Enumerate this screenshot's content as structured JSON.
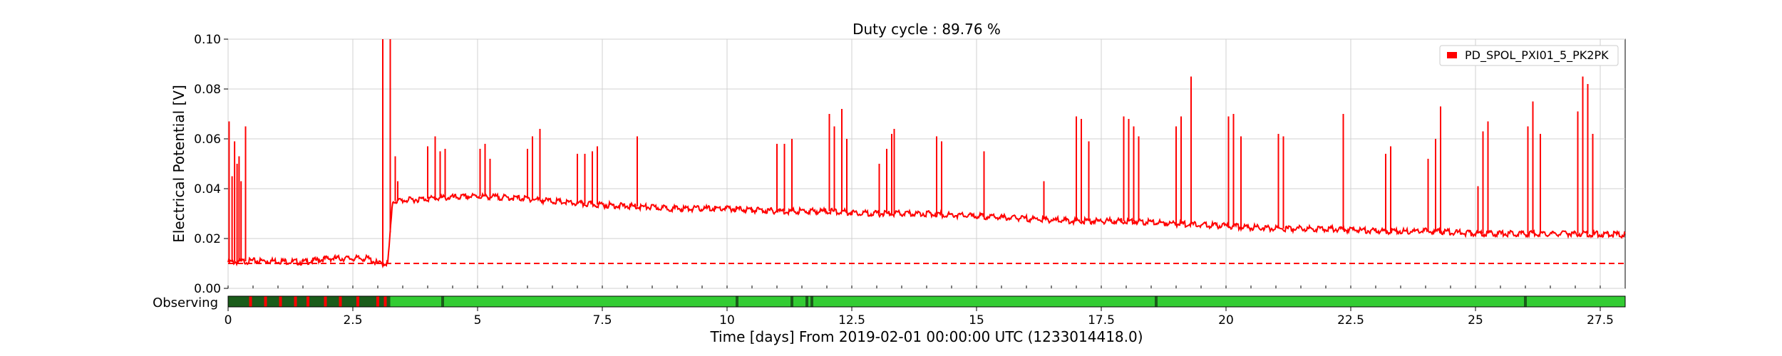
{
  "chart_data": {
    "type": "line",
    "title": "Duty cycle : 89.76 %",
    "xlabel": "Time [days] From 2019-02-01 00:00:00 UTC (1233014418.0)",
    "ylabel": "Electrical Potential [V]",
    "xlim": [
      0,
      28
    ],
    "ylim": [
      0,
      0.1
    ],
    "x_ticks": [
      0,
      2.5,
      5,
      7.5,
      10,
      12.5,
      15,
      17.5,
      20,
      22.5,
      25,
      27.5
    ],
    "x_tick_labels": [
      "0",
      "2.5",
      "5",
      "7.5",
      "10",
      "12.5",
      "15",
      "17.5",
      "20",
      "22.5",
      "25",
      "27.5"
    ],
    "y_ticks": [
      0,
      0.02,
      0.04,
      0.06,
      0.08,
      0.1
    ],
    "y_tick_labels": [
      "0.00",
      "0.02",
      "0.04",
      "0.06",
      "0.08",
      "0.10"
    ],
    "grid": true,
    "legend_position": "top-right",
    "colors": {
      "series": "#ff0000",
      "observing": "#33cc33",
      "dark_segment": "#1a5c1a",
      "not_observing": "#ff0000"
    },
    "series": [
      {
        "name": "PD_SPOL_PXI01_5_PK2PK",
        "baseline": {
          "x": [
            0,
            0.5,
            1.0,
            1.5,
            2.0,
            2.5,
            2.8,
            3.0,
            3.2,
            3.3,
            4.0,
            5.0,
            6.0,
            7.0,
            8.0,
            9.0,
            10.0,
            11.0,
            12.0,
            13.0,
            14.0,
            15.0,
            16.0,
            17.0,
            18.0,
            19.0,
            20.0,
            21.0,
            22.0,
            23.0,
            24.0,
            25.0,
            26.0,
            27.0,
            28.0
          ],
          "y": [
            0.0105,
            0.011,
            0.011,
            0.0105,
            0.012,
            0.012,
            0.012,
            0.01,
            0.01,
            0.035,
            0.036,
            0.037,
            0.036,
            0.034,
            0.033,
            0.032,
            0.032,
            0.031,
            0.031,
            0.03,
            0.03,
            0.029,
            0.028,
            0.027,
            0.027,
            0.026,
            0.025,
            0.024,
            0.024,
            0.023,
            0.023,
            0.022,
            0.022,
            0.022,
            0.0215
          ]
        },
        "spikes": [
          {
            "x": 0.02,
            "y": 0.067
          },
          {
            "x": 0.08,
            "y": 0.045
          },
          {
            "x": 0.13,
            "y": 0.059
          },
          {
            "x": 0.18,
            "y": 0.05
          },
          {
            "x": 0.22,
            "y": 0.053
          },
          {
            "x": 0.26,
            "y": 0.043
          },
          {
            "x": 0.35,
            "y": 0.065
          },
          {
            "x": 3.1,
            "y": 0.1
          },
          {
            "x": 3.25,
            "y": 0.1
          },
          {
            "x": 3.35,
            "y": 0.053
          },
          {
            "x": 3.4,
            "y": 0.043
          },
          {
            "x": 4.0,
            "y": 0.057
          },
          {
            "x": 4.15,
            "y": 0.061
          },
          {
            "x": 4.25,
            "y": 0.055
          },
          {
            "x": 4.35,
            "y": 0.056
          },
          {
            "x": 5.05,
            "y": 0.056
          },
          {
            "x": 5.15,
            "y": 0.058
          },
          {
            "x": 5.25,
            "y": 0.052
          },
          {
            "x": 6.0,
            "y": 0.056
          },
          {
            "x": 6.1,
            "y": 0.061
          },
          {
            "x": 6.25,
            "y": 0.064
          },
          {
            "x": 7.0,
            "y": 0.054
          },
          {
            "x": 7.15,
            "y": 0.054
          },
          {
            "x": 7.3,
            "y": 0.055
          },
          {
            "x": 7.4,
            "y": 0.057
          },
          {
            "x": 8.2,
            "y": 0.061
          },
          {
            "x": 11.0,
            "y": 0.058
          },
          {
            "x": 11.15,
            "y": 0.058
          },
          {
            "x": 11.3,
            "y": 0.06
          },
          {
            "x": 12.05,
            "y": 0.07
          },
          {
            "x": 12.15,
            "y": 0.065
          },
          {
            "x": 12.3,
            "y": 0.072
          },
          {
            "x": 12.4,
            "y": 0.06
          },
          {
            "x": 13.05,
            "y": 0.05
          },
          {
            "x": 13.2,
            "y": 0.056
          },
          {
            "x": 13.3,
            "y": 0.062
          },
          {
            "x": 13.35,
            "y": 0.064
          },
          {
            "x": 14.2,
            "y": 0.061
          },
          {
            "x": 14.3,
            "y": 0.059
          },
          {
            "x": 15.15,
            "y": 0.055
          },
          {
            "x": 16.35,
            "y": 0.043
          },
          {
            "x": 17.0,
            "y": 0.069
          },
          {
            "x": 17.1,
            "y": 0.068
          },
          {
            "x": 17.25,
            "y": 0.059
          },
          {
            "x": 17.95,
            "y": 0.069
          },
          {
            "x": 18.05,
            "y": 0.068
          },
          {
            "x": 18.15,
            "y": 0.065
          },
          {
            "x": 18.25,
            "y": 0.061
          },
          {
            "x": 19.0,
            "y": 0.065
          },
          {
            "x": 19.1,
            "y": 0.069
          },
          {
            "x": 19.3,
            "y": 0.085
          },
          {
            "x": 20.05,
            "y": 0.069
          },
          {
            "x": 20.15,
            "y": 0.07
          },
          {
            "x": 20.3,
            "y": 0.061
          },
          {
            "x": 21.05,
            "y": 0.062
          },
          {
            "x": 21.15,
            "y": 0.061
          },
          {
            "x": 22.35,
            "y": 0.07
          },
          {
            "x": 23.2,
            "y": 0.054
          },
          {
            "x": 23.3,
            "y": 0.057
          },
          {
            "x": 24.05,
            "y": 0.052
          },
          {
            "x": 24.2,
            "y": 0.06
          },
          {
            "x": 24.3,
            "y": 0.073
          },
          {
            "x": 25.05,
            "y": 0.041
          },
          {
            "x": 25.15,
            "y": 0.063
          },
          {
            "x": 25.25,
            "y": 0.067
          },
          {
            "x": 26.05,
            "y": 0.065
          },
          {
            "x": 26.15,
            "y": 0.075
          },
          {
            "x": 26.3,
            "y": 0.062
          },
          {
            "x": 27.05,
            "y": 0.071
          },
          {
            "x": 27.15,
            "y": 0.085
          },
          {
            "x": 27.25,
            "y": 0.082
          },
          {
            "x": 27.35,
            "y": 0.062
          }
        ]
      }
    ],
    "threshold": {
      "y": 0.01,
      "style": "dashed"
    },
    "state_bar": {
      "label": "Observing",
      "segments": [
        {
          "start": 0,
          "end": 3.25,
          "state": "dark_segment"
        },
        {
          "start": 3.25,
          "end": 28,
          "state": "observing"
        }
      ],
      "gap_marks": [
        0.45,
        0.75,
        1.05,
        1.35,
        1.6,
        1.95,
        2.25,
        2.6,
        3.0,
        3.15,
        4.3,
        10.2,
        11.3,
        11.6,
        11.7,
        18.6,
        26.0
      ]
    }
  }
}
